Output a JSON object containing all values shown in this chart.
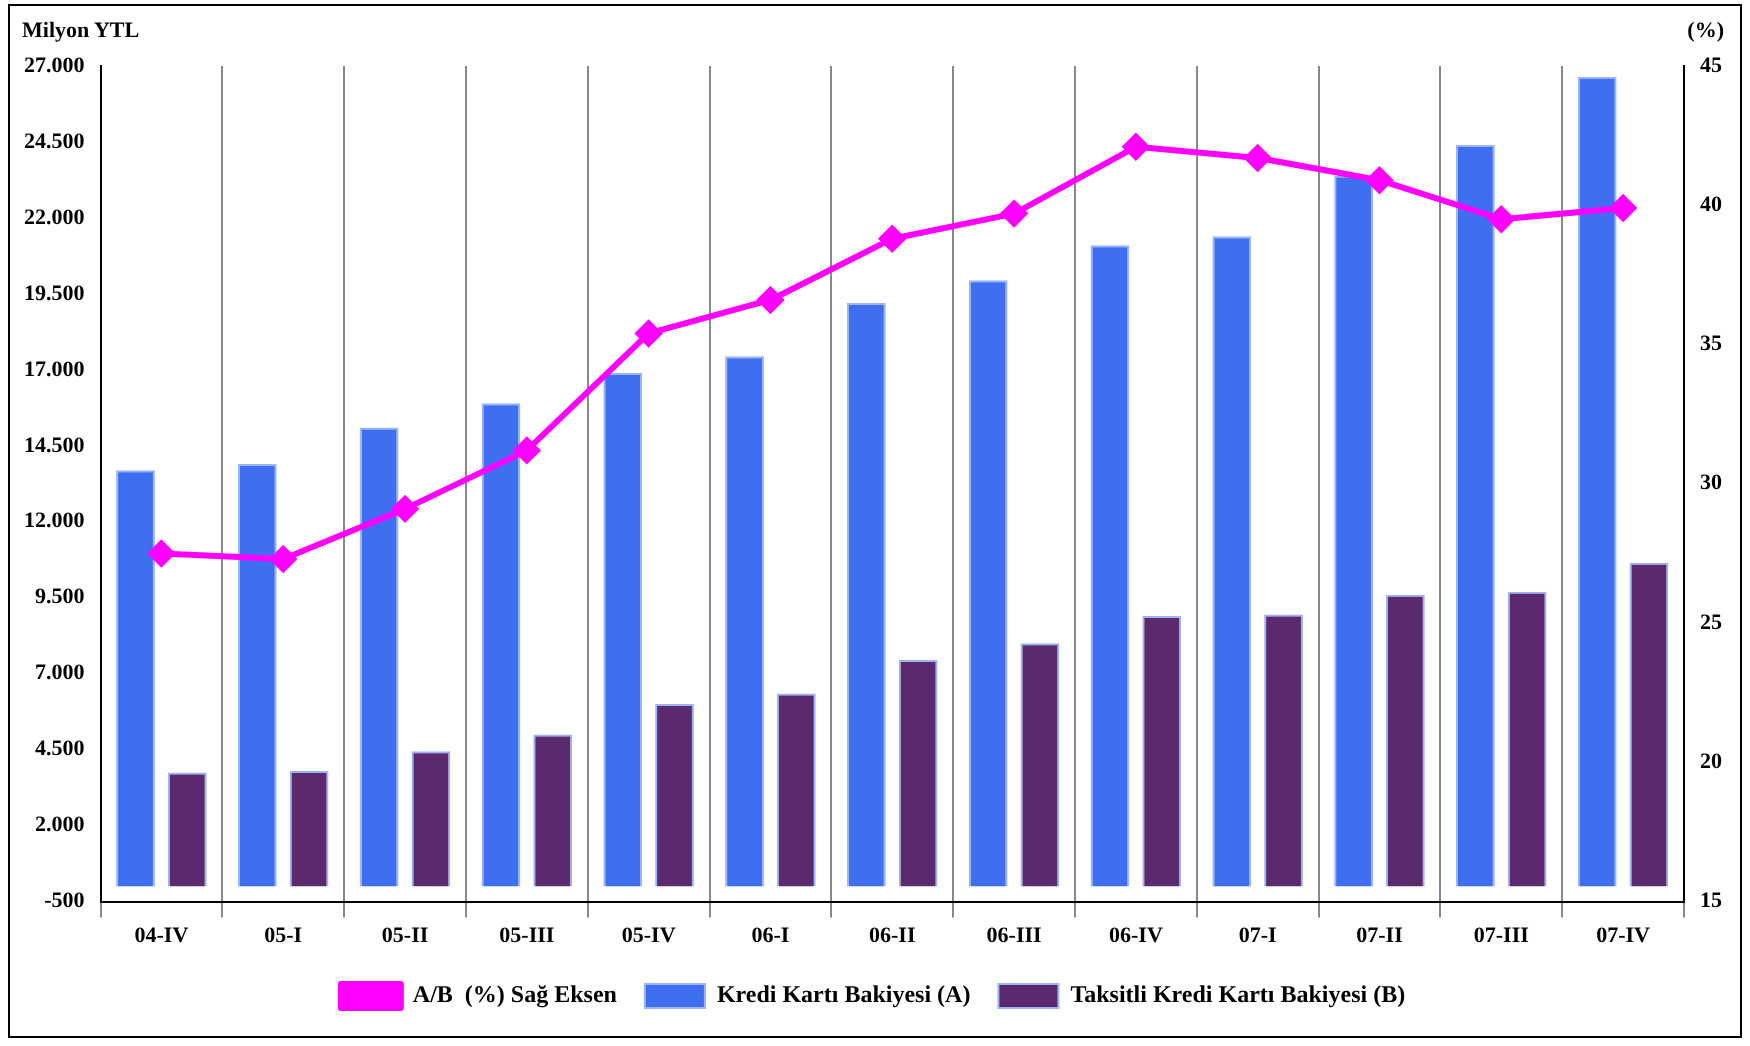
{
  "chart_data": {
    "type": "bar",
    "ylabel": "Milyon YTL",
    "y2label": "(%)",
    "categories": [
      "04-IV",
      "05-I",
      "05-II",
      "05-III",
      "05-IV",
      "06-I",
      "06-II",
      "06-III",
      "06-IV",
      "07-I",
      "07-II",
      "07-III",
      "07-IV"
    ],
    "series": [
      {
        "name": "Kredi Kartı Bakiyesi (A)",
        "color": "#3d6ff0",
        "values": [
          13700,
          13900,
          15100,
          15900,
          16900,
          17450,
          19200,
          19950,
          21100,
          21400,
          23400,
          24400,
          26650
        ]
      },
      {
        "name": "Taksitli Kredi Kartı Bakiyesi (B)",
        "color": "#5b2a6e",
        "values": [
          3750,
          3800,
          4450,
          5000,
          6000,
          6350,
          7450,
          8000,
          8900,
          8950,
          9600,
          9700,
          10650
        ]
      },
      {
        "name": "A/B  (%) Sağ Eksen",
        "type": "line",
        "axis": "y2",
        "color": "#ff00ff",
        "marker": "diamond",
        "values": [
          27.5,
          27.3,
          29.1,
          31.2,
          35.4,
          36.6,
          38.8,
          39.7,
          42.1,
          41.7,
          40.9,
          39.5,
          39.9
        ]
      }
    ],
    "ylim": [
      -500,
      27000
    ],
    "yticks": [
      {
        "value": -500,
        "label": "-500"
      },
      {
        "value": 2000,
        "label": "2.000"
      },
      {
        "value": 4500,
        "label": "4.500"
      },
      {
        "value": 7000,
        "label": "7.000"
      },
      {
        "value": 9500,
        "label": "9.500"
      },
      {
        "value": 12000,
        "label": "12.000"
      },
      {
        "value": 14500,
        "label": "14.500"
      },
      {
        "value": 17000,
        "label": "17.000"
      },
      {
        "value": 19500,
        "label": "19.500"
      },
      {
        "value": 22000,
        "label": "22.000"
      },
      {
        "value": 24500,
        "label": "24.500"
      },
      {
        "value": 27000,
        "label": "27.000"
      }
    ],
    "y2lim": [
      15,
      45
    ],
    "y2ticks": [
      15,
      20,
      25,
      30,
      35,
      40,
      45
    ],
    "grid": "x",
    "legend": "bottom"
  }
}
